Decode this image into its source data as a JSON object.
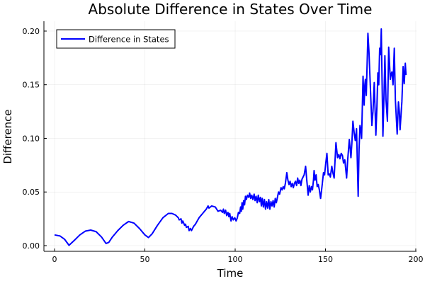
{
  "chart_data": {
    "type": "line",
    "title": "Absolute Difference in States Over Time",
    "xlabel": "Time",
    "ylabel": "Difference",
    "xlim": [
      -5.9,
      200.4
    ],
    "ylim": [
      -0.0053,
      0.2092
    ],
    "xticks": [
      0,
      50,
      100,
      150,
      200
    ],
    "xtick_labels": [
      "0",
      "50",
      "100",
      "150",
      "200"
    ],
    "yticks": [
      0,
      0.05,
      0.1,
      0.15,
      0.2
    ],
    "ytick_labels": [
      "0.00",
      "0.05",
      "0.10",
      "0.15",
      "0.20"
    ],
    "grid": true,
    "legend_position": "top-left",
    "series": [
      {
        "name": "Difference in States",
        "color": "#0000ff",
        "points": [
          [
            0,
            0.01
          ],
          [
            3,
            0.009
          ],
          [
            5.5,
            0.006
          ],
          [
            8,
            0.0003
          ],
          [
            11,
            0.005
          ],
          [
            14,
            0.01
          ],
          [
            17,
            0.0135
          ],
          [
            20,
            0.0145
          ],
          [
            23,
            0.013
          ],
          [
            26,
            0.008
          ],
          [
            28.5,
            0.002
          ],
          [
            30,
            0.003
          ],
          [
            32,
            0.008
          ],
          [
            35,
            0.014
          ],
          [
            38,
            0.019
          ],
          [
            41,
            0.0225
          ],
          [
            44,
            0.021
          ],
          [
            47,
            0.016
          ],
          [
            50,
            0.01
          ],
          [
            52,
            0.0075
          ],
          [
            54,
            0.011
          ],
          [
            57,
            0.019
          ],
          [
            60,
            0.026
          ],
          [
            63,
            0.03
          ],
          [
            65,
            0.03
          ],
          [
            67,
            0.0285
          ],
          [
            68.5,
            0.026
          ],
          [
            69,
            0.024
          ],
          [
            70,
            0.025
          ],
          [
            70.5,
            0.021
          ],
          [
            71,
            0.023
          ],
          [
            72,
            0.019
          ],
          [
            72.5,
            0.02
          ],
          [
            73,
            0.017
          ],
          [
            74,
            0.018
          ],
          [
            74.5,
            0.014
          ],
          [
            75.2,
            0.016
          ],
          [
            75.8,
            0.014
          ],
          [
            77,
            0.018
          ],
          [
            78,
            0.02
          ],
          [
            79,
            0.023
          ],
          [
            80,
            0.026
          ],
          [
            82,
            0.03
          ],
          [
            84,
            0.034
          ],
          [
            85,
            0.037
          ],
          [
            85.5,
            0.035
          ],
          [
            87,
            0.037
          ],
          [
            89,
            0.036
          ],
          [
            90.5,
            0.032
          ],
          [
            92,
            0.033
          ],
          [
            93,
            0.031
          ],
          [
            93.5,
            0.034
          ],
          [
            94,
            0.03
          ],
          [
            94.7,
            0.033
          ],
          [
            95.3,
            0.028
          ],
          [
            96,
            0.031
          ],
          [
            96.5,
            0.027
          ],
          [
            97,
            0.03
          ],
          [
            97.7,
            0.023
          ],
          [
            98.3,
            0.027
          ],
          [
            99,
            0.024
          ],
          [
            99.8,
            0.026
          ],
          [
            100.5,
            0.023
          ],
          [
            101.2,
            0.026
          ],
          [
            101.8,
            0.031
          ],
          [
            102.5,
            0.03
          ],
          [
            103,
            0.036
          ],
          [
            103.4,
            0.032
          ],
          [
            103.8,
            0.04
          ],
          [
            104.2,
            0.034
          ],
          [
            104.7,
            0.042
          ],
          [
            105.2,
            0.038
          ],
          [
            105.7,
            0.046
          ],
          [
            106.2,
            0.043
          ],
          [
            106.8,
            0.047
          ],
          [
            107.5,
            0.045
          ],
          [
            108,
            0.049
          ],
          [
            108.6,
            0.044
          ],
          [
            109.2,
            0.047
          ],
          [
            109.8,
            0.043
          ],
          [
            110.5,
            0.048
          ],
          [
            111,
            0.042
          ],
          [
            111.6,
            0.046
          ],
          [
            112.2,
            0.04
          ],
          [
            112.8,
            0.047
          ],
          [
            113.4,
            0.041
          ],
          [
            114,
            0.045
          ],
          [
            114.5,
            0.037
          ],
          [
            115,
            0.044
          ],
          [
            115.6,
            0.036
          ],
          [
            116.2,
            0.043
          ],
          [
            116.8,
            0.034
          ],
          [
            117.4,
            0.041
          ],
          [
            118,
            0.035
          ],
          [
            118.6,
            0.043
          ],
          [
            119.2,
            0.034
          ],
          [
            119.8,
            0.041
          ],
          [
            120.4,
            0.037
          ],
          [
            121,
            0.042
          ],
          [
            121.6,
            0.036
          ],
          [
            122.2,
            0.044
          ],
          [
            122.8,
            0.04
          ],
          [
            123.4,
            0.045
          ],
          [
            124,
            0.05
          ],
          [
            124.6,
            0.048
          ],
          [
            125.4,
            0.054
          ],
          [
            126,
            0.052
          ],
          [
            126.6,
            0.055
          ],
          [
            127.2,
            0.053
          ],
          [
            127.8,
            0.058
          ],
          [
            128.6,
            0.068
          ],
          [
            129.2,
            0.061
          ],
          [
            129.8,
            0.057
          ],
          [
            130.4,
            0.06
          ],
          [
            131,
            0.055
          ],
          [
            131.6,
            0.058
          ],
          [
            132.2,
            0.054
          ],
          [
            132.8,
            0.058
          ],
          [
            133.4,
            0.06
          ],
          [
            134,
            0.056
          ],
          [
            134.6,
            0.063
          ],
          [
            135.2,
            0.058
          ],
          [
            135.8,
            0.061
          ],
          [
            136.4,
            0.056
          ],
          [
            137,
            0.062
          ],
          [
            137.6,
            0.064
          ],
          [
            138.2,
            0.066
          ],
          [
            139,
            0.074
          ],
          [
            139.6,
            0.062
          ],
          [
            140.4,
            0.047
          ],
          [
            141,
            0.056
          ],
          [
            141.6,
            0.05
          ],
          [
            142.2,
            0.055
          ],
          [
            142.8,
            0.052
          ],
          [
            143.4,
            0.062
          ],
          [
            143.7,
            0.07
          ],
          [
            144.2,
            0.061
          ],
          [
            144.8,
            0.066
          ],
          [
            145.4,
            0.055
          ],
          [
            146,
            0.057
          ],
          [
            146.6,
            0.052
          ],
          [
            147.3,
            0.044
          ],
          [
            148,
            0.054
          ],
          [
            148.9,
            0.068
          ],
          [
            149.5,
            0.066
          ],
          [
            150.1,
            0.076
          ],
          [
            150.8,
            0.086
          ],
          [
            151.5,
            0.066
          ],
          [
            152.1,
            0.067
          ],
          [
            152.7,
            0.064
          ],
          [
            153.5,
            0.074
          ],
          [
            154.1,
            0.068
          ],
          [
            154.8,
            0.063
          ],
          [
            155.8,
            0.096
          ],
          [
            156.7,
            0.082
          ],
          [
            157.4,
            0.085
          ],
          [
            158,
            0.081
          ],
          [
            158.7,
            0.086
          ],
          [
            159.4,
            0.084
          ],
          [
            160,
            0.077
          ],
          [
            160.7,
            0.08
          ],
          [
            161.7,
            0.063
          ],
          [
            162.3,
            0.08
          ],
          [
            163.2,
            0.099
          ],
          [
            164.1,
            0.082
          ],
          [
            164.6,
            0.095
          ],
          [
            165.2,
            0.116
          ],
          [
            165.9,
            0.105
          ],
          [
            166.5,
            0.098
          ],
          [
            167.2,
            0.109
          ],
          [
            168.1,
            0.046
          ],
          [
            168.6,
            0.09
          ],
          [
            169.1,
            0.112
          ],
          [
            169.6,
            0.108
          ],
          [
            170,
            0.1
          ],
          [
            170.8,
            0.158
          ],
          [
            171.4,
            0.131
          ],
          [
            171.8,
            0.15
          ],
          [
            172.1,
            0.155
          ],
          [
            172.6,
            0.14
          ],
          [
            173.5,
            0.198
          ],
          [
            174.1,
            0.18
          ],
          [
            174.8,
            0.15
          ],
          [
            175.7,
            0.112
          ],
          [
            176.3,
            0.125
          ],
          [
            177,
            0.152
          ],
          [
            177.9,
            0.103
          ],
          [
            178.5,
            0.13
          ],
          [
            179,
            0.161
          ],
          [
            179.5,
            0.15
          ],
          [
            180,
            0.184
          ],
          [
            180.5,
            0.178
          ],
          [
            180.9,
            0.202
          ],
          [
            181.8,
            0.102
          ],
          [
            182.4,
            0.14
          ],
          [
            182.9,
            0.177
          ],
          [
            183.5,
            0.136
          ],
          [
            184.3,
            0.116
          ],
          [
            185,
            0.185
          ],
          [
            185.9,
            0.155
          ],
          [
            186.3,
            0.16
          ],
          [
            186.8,
            0.162
          ],
          [
            187.4,
            0.15
          ],
          [
            188.1,
            0.184
          ],
          [
            188.7,
            0.136
          ],
          [
            189.7,
            0.104
          ],
          [
            190.4,
            0.134
          ],
          [
            190.9,
            0.125
          ],
          [
            191.3,
            0.108
          ],
          [
            192.3,
            0.134
          ],
          [
            193,
            0.167
          ],
          [
            193.6,
            0.151
          ],
          [
            194.2,
            0.17
          ],
          [
            194.6,
            0.159
          ]
        ]
      }
    ]
  }
}
